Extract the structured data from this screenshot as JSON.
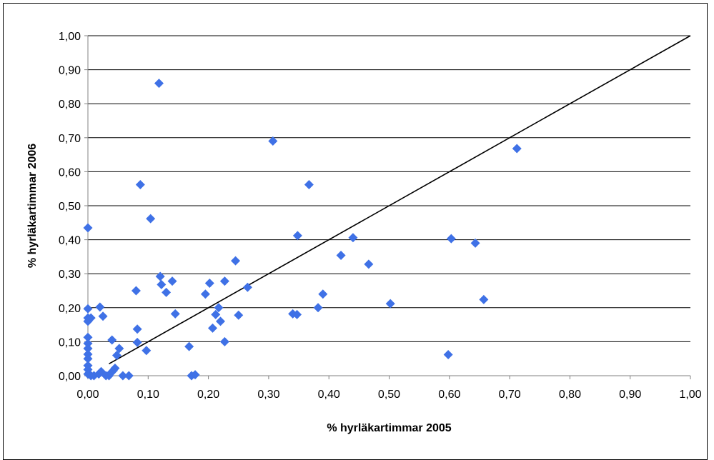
{
  "chart_data": {
    "type": "scatter",
    "title": "",
    "xlabel": "% hyrläkartimmar 2005",
    "ylabel": "% hyrläkartimmar 2006",
    "xlim": [
      0,
      1
    ],
    "ylim": [
      0,
      1
    ],
    "x_ticks": [
      "0,00",
      "0,10",
      "0,20",
      "0,30",
      "0,40",
      "0,50",
      "0,60",
      "0,70",
      "0,80",
      "0,90",
      "1,00"
    ],
    "y_ticks": [
      "0,00",
      "0,10",
      "0,20",
      "0,30",
      "0,40",
      "0,50",
      "0,60",
      "0,70",
      "0,80",
      "0,90",
      "1,00"
    ],
    "grid": "horizontal",
    "legend": "none",
    "marker": "diamond",
    "marker_color": "#3f71e6",
    "trend_line": {
      "from": [
        0.035,
        0.035
      ],
      "to": [
        1.0,
        1.0
      ],
      "color": "#000000"
    },
    "points": [
      {
        "x": 0.0,
        "y": 0.435
      },
      {
        "x": 0.0,
        "y": 0.197
      },
      {
        "x": 0.0,
        "y": 0.17
      },
      {
        "x": 0.0,
        "y": 0.16
      },
      {
        "x": 0.0,
        "y": 0.113
      },
      {
        "x": 0.0,
        "y": 0.095
      },
      {
        "x": 0.0,
        "y": 0.08
      },
      {
        "x": 0.0,
        "y": 0.063
      },
      {
        "x": 0.0,
        "y": 0.05
      },
      {
        "x": 0.0,
        "y": 0.03
      },
      {
        "x": 0.0,
        "y": 0.018
      },
      {
        "x": 0.0,
        "y": 0.005
      },
      {
        "x": 0.005,
        "y": 0.17
      },
      {
        "x": 0.005,
        "y": 0.0
      },
      {
        "x": 0.01,
        "y": 0.0
      },
      {
        "x": 0.018,
        "y": 0.005
      },
      {
        "x": 0.02,
        "y": 0.202
      },
      {
        "x": 0.022,
        "y": 0.012
      },
      {
        "x": 0.025,
        "y": 0.175
      },
      {
        "x": 0.03,
        "y": 0.0
      },
      {
        "x": 0.035,
        "y": 0.0
      },
      {
        "x": 0.038,
        "y": 0.008
      },
      {
        "x": 0.04,
        "y": 0.105
      },
      {
        "x": 0.042,
        "y": 0.015
      },
      {
        "x": 0.045,
        "y": 0.022
      },
      {
        "x": 0.048,
        "y": 0.06
      },
      {
        "x": 0.052,
        "y": 0.08
      },
      {
        "x": 0.058,
        "y": 0.0
      },
      {
        "x": 0.068,
        "y": 0.0
      },
      {
        "x": 0.08,
        "y": 0.25
      },
      {
        "x": 0.082,
        "y": 0.137
      },
      {
        "x": 0.082,
        "y": 0.098
      },
      {
        "x": 0.087,
        "y": 0.562
      },
      {
        "x": 0.097,
        "y": 0.074
      },
      {
        "x": 0.104,
        "y": 0.462
      },
      {
        "x": 0.118,
        "y": 0.86
      },
      {
        "x": 0.12,
        "y": 0.292
      },
      {
        "x": 0.122,
        "y": 0.268
      },
      {
        "x": 0.13,
        "y": 0.245
      },
      {
        "x": 0.14,
        "y": 0.278
      },
      {
        "x": 0.145,
        "y": 0.182
      },
      {
        "x": 0.168,
        "y": 0.086
      },
      {
        "x": 0.172,
        "y": 0.0
      },
      {
        "x": 0.178,
        "y": 0.003
      },
      {
        "x": 0.195,
        "y": 0.24
      },
      {
        "x": 0.202,
        "y": 0.272
      },
      {
        "x": 0.207,
        "y": 0.14
      },
      {
        "x": 0.212,
        "y": 0.18
      },
      {
        "x": 0.217,
        "y": 0.2
      },
      {
        "x": 0.22,
        "y": 0.16
      },
      {
        "x": 0.227,
        "y": 0.278
      },
      {
        "x": 0.227,
        "y": 0.1
      },
      {
        "x": 0.245,
        "y": 0.338
      },
      {
        "x": 0.25,
        "y": 0.178
      },
      {
        "x": 0.265,
        "y": 0.26
      },
      {
        "x": 0.307,
        "y": 0.69
      },
      {
        "x": 0.34,
        "y": 0.182
      },
      {
        "x": 0.347,
        "y": 0.18
      },
      {
        "x": 0.348,
        "y": 0.412
      },
      {
        "x": 0.367,
        "y": 0.562
      },
      {
        "x": 0.382,
        "y": 0.2
      },
      {
        "x": 0.39,
        "y": 0.24
      },
      {
        "x": 0.42,
        "y": 0.354
      },
      {
        "x": 0.44,
        "y": 0.406
      },
      {
        "x": 0.466,
        "y": 0.328
      },
      {
        "x": 0.502,
        "y": 0.212
      },
      {
        "x": 0.598,
        "y": 0.062
      },
      {
        "x": 0.603,
        "y": 0.403
      },
      {
        "x": 0.643,
        "y": 0.39
      },
      {
        "x": 0.657,
        "y": 0.224
      },
      {
        "x": 0.712,
        "y": 0.668
      }
    ]
  }
}
